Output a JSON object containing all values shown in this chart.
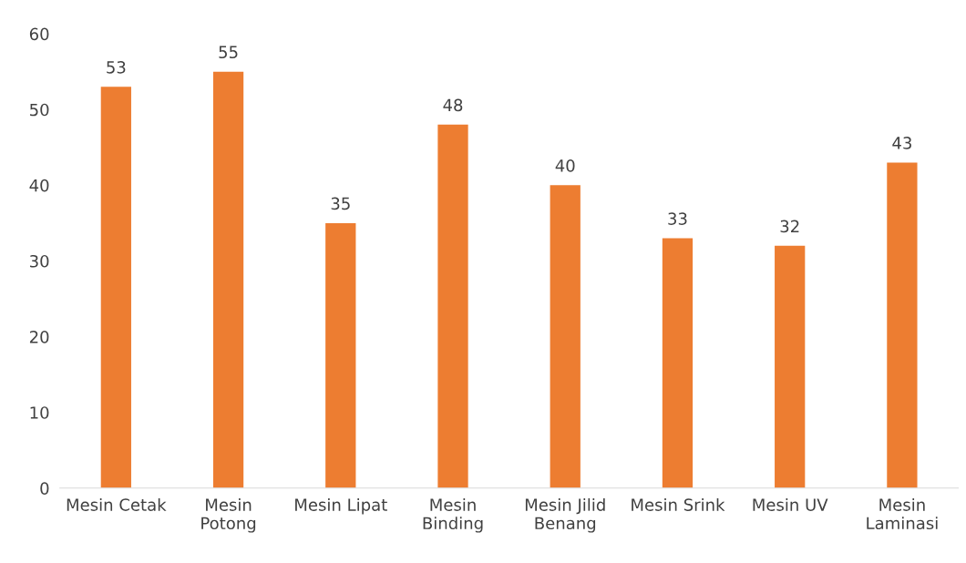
{
  "chart_data": {
    "type": "bar",
    "categories": [
      "Mesin Cetak",
      "Mesin\nPotong",
      "Mesin Lipat",
      "Mesin\nBinding",
      "Mesin Jilid\nBenang",
      "Mesin Srink",
      "Mesin UV",
      "Mesin\nLaminasi"
    ],
    "values": [
      53,
      55,
      35,
      48,
      40,
      33,
      32,
      43
    ],
    "color": "#ed7d31",
    "ylim": [
      0,
      60
    ],
    "yticks": [
      0,
      10,
      20,
      30,
      40,
      50,
      60
    ],
    "data_labels": true,
    "grid": false,
    "legend": false
  }
}
